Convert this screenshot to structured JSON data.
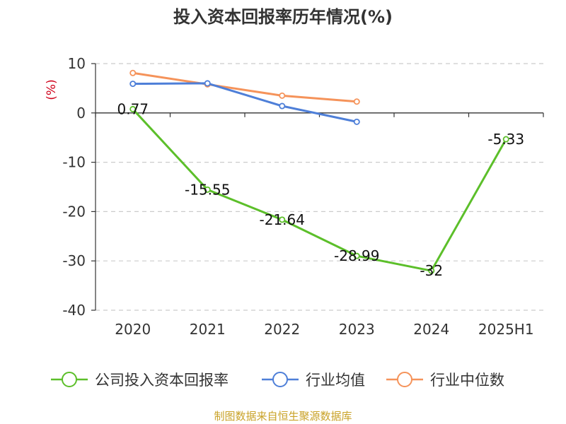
{
  "chart_data": {
    "type": "line",
    "title": "投入资本回报率历年情况(%)",
    "ylabel": "(%)",
    "xlabel": "",
    "categories": [
      "2020",
      "2021",
      "2022",
      "2023",
      "2024",
      "2025H1"
    ],
    "ylim": [
      -40,
      10
    ],
    "yticks": [
      10,
      0,
      -10,
      -20,
      -30,
      -40
    ],
    "grid": true,
    "legend_position": "bottom",
    "series": [
      {
        "name": "公司投入资本回报率",
        "color": "#5cbf2a",
        "values": [
          0.77,
          -15.55,
          -21.64,
          -28.99,
          -32,
          -5.33
        ],
        "labels": [
          "0.77",
          "-15.55",
          "-21.64",
          "-28.99",
          "-32",
          "-5.33"
        ]
      },
      {
        "name": "行业均值",
        "color": "#4e7fd8",
        "values": [
          5.9,
          6.0,
          1.4,
          -1.8,
          null,
          null
        ]
      },
      {
        "name": "行业中位数",
        "color": "#f5935a",
        "values": [
          8.1,
          5.8,
          3.5,
          2.3,
          null,
          null
        ]
      }
    ]
  },
  "source_text": "制图数据来自恒生聚源数据库"
}
